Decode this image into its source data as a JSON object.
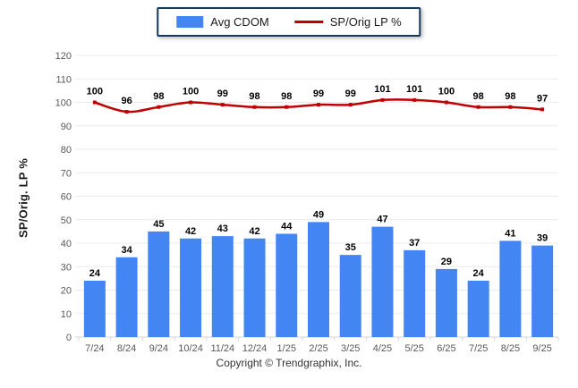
{
  "legend": {
    "items": [
      {
        "label": "Avg CDOM",
        "type": "bar",
        "color": "#4385f3"
      },
      {
        "label": "SP/Orig LP %",
        "type": "line",
        "color": "#C00000"
      }
    ]
  },
  "y_axis": {
    "title": "SP/Orig. LP %"
  },
  "footer": {
    "text": "Copyright © Trendgraphix, Inc."
  },
  "colors": {
    "bar": "#4385f3",
    "line": "#C00000",
    "gridline": "#ebebeb",
    "baseline": "#d6d6d6",
    "tick_text": "#595959",
    "value_label": "#000000"
  },
  "chart_data": {
    "type": "bar",
    "subtype": "bar+line combo",
    "categories": [
      "7/24",
      "8/24",
      "9/24",
      "10/24",
      "11/24",
      "12/24",
      "1/25",
      "2/25",
      "3/25",
      "4/25",
      "5/25",
      "6/25",
      "7/25",
      "8/25",
      "9/25"
    ],
    "series": [
      {
        "name": "Avg CDOM",
        "type": "bar",
        "color": "#4385f3",
        "values": [
          24,
          34,
          45,
          42,
          43,
          42,
          44,
          49,
          35,
          47,
          37,
          29,
          24,
          41,
          39
        ]
      },
      {
        "name": "SP/Orig LP %",
        "type": "line",
        "color": "#C00000",
        "values": [
          100,
          96,
          98,
          100,
          99,
          98,
          98,
          99,
          99,
          101,
          101,
          100,
          98,
          98,
          97
        ]
      }
    ],
    "title": "",
    "xlabel": "",
    "ylabel": "SP/Orig. LP %",
    "ylim": [
      0,
      120
    ],
    "ytick_step": 10,
    "grid": true,
    "legend_position": "top-center",
    "data_labels": true
  }
}
